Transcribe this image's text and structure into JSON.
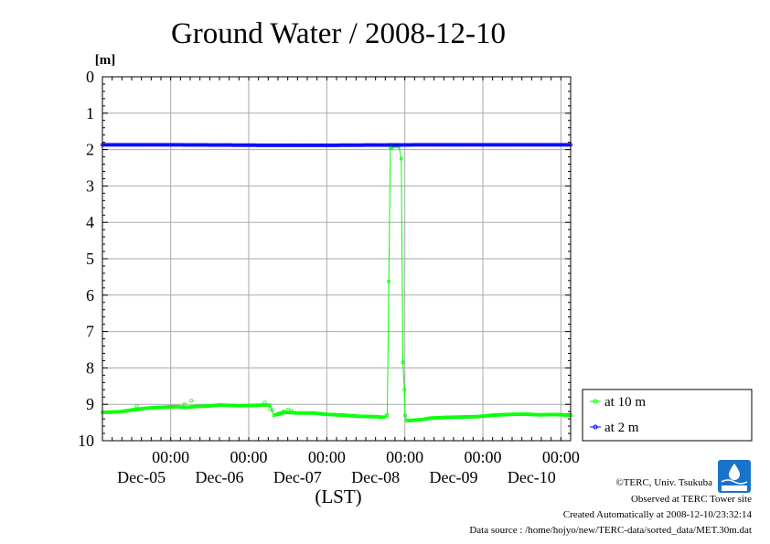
{
  "chart_data": {
    "type": "line",
    "title": "Ground Water / 2008-12-10",
    "ylabel": "[m]",
    "xlabel": "(LST)",
    "ylim": [
      0,
      10
    ],
    "y_inverted": true,
    "y_ticks": [
      "0",
      "1",
      "2",
      "3",
      "4",
      "5",
      "6",
      "7",
      "8",
      "9",
      "10"
    ],
    "x_ticks": [
      {
        "t": 0.875,
        "time": "00:00",
        "date": "Dec-05"
      },
      {
        "t": 1.875,
        "time": "00:00",
        "date": "Dec-06"
      },
      {
        "t": 2.875,
        "time": "00:00",
        "date": "Dec-07"
      },
      {
        "t": 3.875,
        "time": "00:00",
        "date": "Dec-08"
      },
      {
        "t": 4.875,
        "time": "00:00",
        "date": "Dec-09"
      },
      {
        "t": 5.875,
        "time": "00:00",
        "date": "Dec-10"
      }
    ],
    "xlim_days": [
      0,
      6
    ],
    "grid": true,
    "legend_position": "right",
    "series": [
      {
        "name": "at 10 m",
        "color": "#00ff00",
        "marker": "circle",
        "points": [
          [
            0.0,
            9.22
          ],
          [
            0.2,
            9.21
          ],
          [
            0.4,
            9.15
          ],
          [
            0.6,
            9.1
          ],
          [
            0.8,
            9.08
          ],
          [
            0.95,
            9.06
          ],
          [
            1.05,
            9.09
          ],
          [
            1.1,
            9.08
          ],
          [
            1.2,
            9.06
          ],
          [
            1.35,
            9.05
          ],
          [
            1.5,
            9.02
          ],
          [
            1.75,
            9.04
          ],
          [
            1.95,
            9.03
          ],
          [
            2.1,
            9.02
          ],
          [
            2.15,
            9.03
          ],
          [
            2.2,
            9.3
          ],
          [
            2.27,
            9.25
          ],
          [
            2.35,
            9.22
          ],
          [
            2.5,
            9.24
          ],
          [
            2.7,
            9.24
          ],
          [
            2.9,
            9.28
          ],
          [
            3.1,
            9.3
          ],
          [
            3.3,
            9.33
          ],
          [
            3.5,
            9.34
          ],
          [
            3.6,
            9.36
          ],
          [
            3.65,
            9.3
          ],
          [
            3.69,
            1.95
          ],
          [
            3.75,
            1.9
          ],
          [
            3.8,
            1.92
          ],
          [
            3.83,
            2.25
          ],
          [
            3.85,
            7.85
          ],
          [
            3.87,
            8.6
          ],
          [
            3.88,
            9.3
          ],
          [
            3.9,
            9.45
          ],
          [
            4.1,
            9.42
          ],
          [
            4.2,
            9.38
          ],
          [
            4.4,
            9.36
          ],
          [
            4.6,
            9.35
          ],
          [
            4.8,
            9.34
          ],
          [
            5.0,
            9.3
          ],
          [
            5.2,
            9.28
          ],
          [
            5.4,
            9.27
          ],
          [
            5.6,
            9.29
          ],
          [
            5.8,
            9.28
          ],
          [
            6.0,
            9.3
          ]
        ],
        "bumps": [
          [
            0.44,
            9.05
          ],
          [
            1.05,
            9.0
          ],
          [
            1.14,
            8.9
          ],
          [
            2.08,
            8.95
          ],
          [
            2.15,
            9.12
          ],
          [
            2.25,
            9.28
          ],
          [
            2.32,
            9.2
          ],
          [
            2.38,
            9.15
          ],
          [
            2.42,
            9.18
          ]
        ]
      },
      {
        "name": "at 2 m",
        "color": "#0000ff",
        "marker": "circle",
        "points": [
          [
            0.0,
            1.87
          ],
          [
            1.0,
            1.87
          ],
          [
            2.0,
            1.88
          ],
          [
            3.0,
            1.88
          ],
          [
            4.0,
            1.87
          ],
          [
            5.0,
            1.87
          ],
          [
            6.0,
            1.87
          ]
        ]
      }
    ]
  },
  "footer": {
    "copyright": "©TERC, Univ. Tsukuba",
    "observed": "Observed at TERC Tower site",
    "created": "Created Automatically at 2008-12-10/23:32:14",
    "source": "Data source : /home/hojyo/new/TERC-data/sorted_data/MET.30m.dat"
  }
}
